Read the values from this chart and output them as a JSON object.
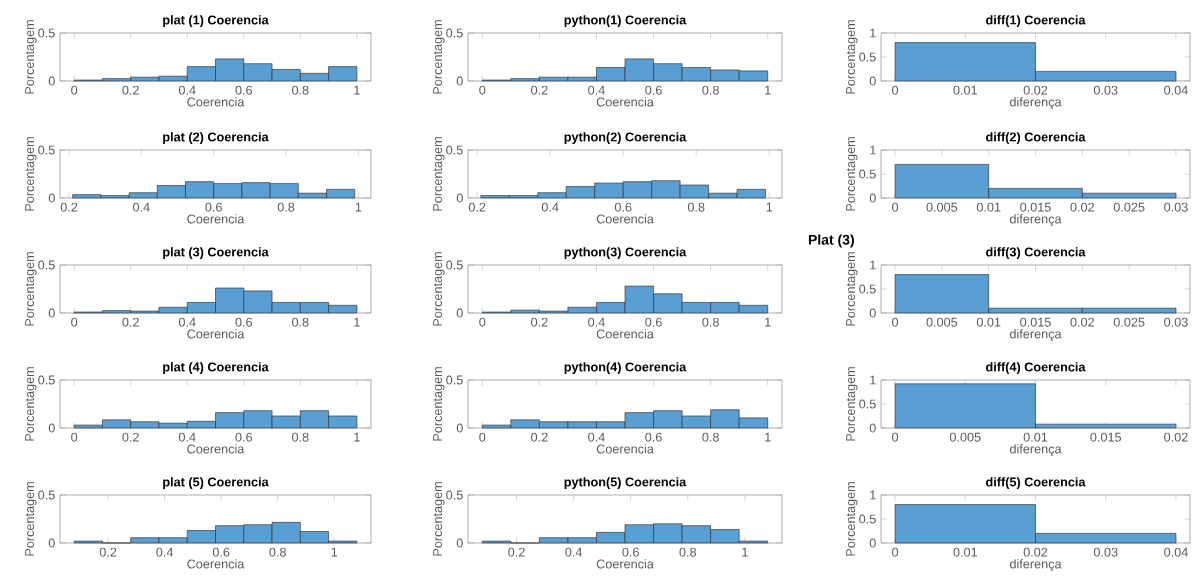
{
  "chart_data": [
    {
      "type": "histogram",
      "title": "plat (1) Coerencia",
      "xlabel": "Coerencia",
      "ylabel": "Porcentagem",
      "color": "#5a9fd4",
      "bins": [
        0,
        0.1,
        0.2,
        0.3,
        0.4,
        0.5,
        0.6,
        0.7,
        0.8,
        0.9,
        1
      ],
      "values": [
        0.01,
        0.025,
        0.04,
        0.05,
        0.15,
        0.23,
        0.18,
        0.12,
        0.08,
        0.15
      ],
      "xlim": [
        -0.05,
        1.05
      ],
      "ylim": [
        0,
        0.5
      ],
      "xticks": [
        0,
        0.2,
        0.4,
        0.6,
        0.8,
        1
      ],
      "yticks": [
        0,
        0.5
      ]
    },
    {
      "type": "histogram",
      "title": "python(1) Coerencia",
      "xlabel": "Coerencia",
      "ylabel": "Porcentagem",
      "color": "#5a9fd4",
      "bins": [
        0,
        0.1,
        0.2,
        0.3,
        0.4,
        0.5,
        0.6,
        0.7,
        0.8,
        0.9,
        1
      ],
      "values": [
        0.01,
        0.025,
        0.04,
        0.04,
        0.14,
        0.23,
        0.18,
        0.14,
        0.115,
        0.105
      ],
      "xlim": [
        -0.05,
        1.05
      ],
      "ylim": [
        0,
        0.5
      ],
      "xticks": [
        0,
        0.2,
        0.4,
        0.6,
        0.8,
        1
      ],
      "yticks": [
        0,
        0.5
      ]
    },
    {
      "type": "histogram",
      "title": "diff(1) Coerencia",
      "xlabel": "diferença",
      "ylabel": "Porcentagem",
      "color": "#5a9fd4",
      "bins": [
        0,
        0.02,
        0.04
      ],
      "values": [
        0.8,
        0.2
      ],
      "xlim": [
        -0.002,
        0.042
      ],
      "ylim": [
        0,
        1
      ],
      "xticks": [
        0,
        0.01,
        0.02,
        0.03,
        0.04
      ],
      "yticks": [
        0,
        0.5,
        1
      ]
    },
    {
      "type": "histogram",
      "title": "plat (2) Coerencia",
      "xlabel": "Coerencia",
      "ylabel": "Porcentagem",
      "color": "#5a9fd4",
      "bins": [
        0.21,
        0.288,
        0.366,
        0.444,
        0.522,
        0.6,
        0.678,
        0.756,
        0.834,
        0.912,
        0.99
      ],
      "values": [
        0.035,
        0.025,
        0.055,
        0.13,
        0.17,
        0.15,
        0.16,
        0.15,
        0.05,
        0.09
      ],
      "xlim": [
        0.175,
        1.035
      ],
      "ylim": [
        0,
        0.5
      ],
      "xticks": [
        0.2,
        0.4,
        0.6,
        0.8,
        1
      ],
      "yticks": [
        0,
        0.5
      ]
    },
    {
      "type": "histogram",
      "title": "python(2) Coerencia",
      "xlabel": "Coerencia",
      "ylabel": "Porcentagem",
      "color": "#5a9fd4",
      "bins": [
        0.21,
        0.288,
        0.366,
        0.444,
        0.522,
        0.6,
        0.678,
        0.756,
        0.834,
        0.912,
        0.99
      ],
      "values": [
        0.025,
        0.025,
        0.055,
        0.12,
        0.155,
        0.17,
        0.18,
        0.135,
        0.05,
        0.09
      ],
      "xlim": [
        0.175,
        1.035
      ],
      "ylim": [
        0,
        0.5
      ],
      "xticks": [
        0.2,
        0.4,
        0.6,
        0.8,
        1
      ],
      "yticks": [
        0,
        0.5
      ]
    },
    {
      "type": "histogram",
      "title": "diff(2) Coerencia",
      "xlabel": "diferença",
      "ylabel": "Porcentagem",
      "color": "#5a9fd4",
      "bins": [
        0,
        0.01,
        0.02,
        0.03
      ],
      "values": [
        0.7,
        0.2,
        0.1
      ],
      "xlim": [
        -0.0015,
        0.0315
      ],
      "ylim": [
        0,
        1
      ],
      "xticks": [
        0,
        0.005,
        0.01,
        0.015,
        0.02,
        0.025,
        0.03
      ],
      "yticks": [
        0,
        0.5,
        1
      ]
    },
    {
      "type": "histogram",
      "title": "plat (3) Coerencia",
      "xlabel": "Coerencia",
      "ylabel": "Porcentagem",
      "color": "#5a9fd4",
      "bins": [
        0,
        0.1,
        0.2,
        0.3,
        0.4,
        0.5,
        0.6,
        0.7,
        0.8,
        0.9,
        1
      ],
      "values": [
        0.01,
        0.025,
        0.02,
        0.06,
        0.11,
        0.26,
        0.23,
        0.11,
        0.11,
        0.08
      ],
      "xlim": [
        -0.05,
        1.05
      ],
      "ylim": [
        0,
        0.5
      ],
      "xticks": [
        0,
        0.2,
        0.4,
        0.6,
        0.8,
        1
      ],
      "yticks": [
        0,
        0.5
      ]
    },
    {
      "type": "histogram",
      "title": "python(3) Coerencia",
      "xlabel": "Coerencia",
      "ylabel": "Porcentagem",
      "color": "#5a9fd4",
      "bins": [
        0,
        0.1,
        0.2,
        0.3,
        0.4,
        0.5,
        0.6,
        0.7,
        0.8,
        0.9,
        1
      ],
      "values": [
        0.01,
        0.03,
        0.02,
        0.06,
        0.11,
        0.28,
        0.2,
        0.11,
        0.11,
        0.08
      ],
      "xlim": [
        -0.05,
        1.05
      ],
      "ylim": [
        0,
        0.5
      ],
      "xticks": [
        0,
        0.2,
        0.4,
        0.6,
        0.8,
        1
      ],
      "yticks": [
        0,
        0.5
      ]
    },
    {
      "type": "histogram",
      "title": "diff(3) Coerencia",
      "xlabel": "diferença",
      "ylabel": "Porcentagem",
      "color": "#5a9fd4",
      "bins": [
        0,
        0.01,
        0.02,
        0.03
      ],
      "values": [
        0.8,
        0.1,
        0.1
      ],
      "xlim": [
        -0.0015,
        0.0315
      ],
      "ylim": [
        0,
        1
      ],
      "xticks": [
        0,
        0.005,
        0.01,
        0.015,
        0.02,
        0.025,
        0.03
      ],
      "yticks": [
        0,
        0.5,
        1
      ],
      "annotations": [
        "Plat (3)"
      ]
    },
    {
      "type": "histogram",
      "title": "plat (4) Coerencia",
      "xlabel": "Coerencia",
      "ylabel": "Porcentagem",
      "color": "#5a9fd4",
      "bins": [
        0,
        0.1,
        0.2,
        0.3,
        0.4,
        0.5,
        0.6,
        0.7,
        0.8,
        0.9,
        1
      ],
      "values": [
        0.03,
        0.085,
        0.065,
        0.05,
        0.07,
        0.16,
        0.18,
        0.125,
        0.18,
        0.125
      ],
      "xlim": [
        -0.05,
        1.05
      ],
      "ylim": [
        0,
        0.5
      ],
      "xticks": [
        0,
        0.2,
        0.4,
        0.6,
        0.8,
        1
      ],
      "yticks": [
        0,
        0.5
      ]
    },
    {
      "type": "histogram",
      "title": "python(4) Coerencia",
      "xlabel": "Coerencia",
      "ylabel": "Porcentagem",
      "color": "#5a9fd4",
      "bins": [
        0,
        0.1,
        0.2,
        0.3,
        0.4,
        0.5,
        0.6,
        0.7,
        0.8,
        0.9,
        1
      ],
      "values": [
        0.03,
        0.085,
        0.065,
        0.065,
        0.065,
        0.16,
        0.18,
        0.125,
        0.19,
        0.105
      ],
      "xlim": [
        -0.05,
        1.05
      ],
      "ylim": [
        0,
        0.5
      ],
      "xticks": [
        0,
        0.2,
        0.4,
        0.6,
        0.8,
        1
      ],
      "yticks": [
        0,
        0.5
      ]
    },
    {
      "type": "histogram",
      "title": "diff(4) Coerencia",
      "xlabel": "diferença",
      "ylabel": "Porcentagem",
      "color": "#5a9fd4",
      "bins": [
        0,
        0.01,
        0.02
      ],
      "values": [
        0.92,
        0.08
      ],
      "xlim": [
        -0.001,
        0.021
      ],
      "ylim": [
        0,
        1
      ],
      "xticks": [
        0,
        0.005,
        0.01,
        0.015,
        0.02
      ],
      "yticks": [
        0,
        0.5,
        1
      ]
    },
    {
      "type": "histogram",
      "title": "plat (5) Coerencia",
      "xlabel": "Coerencia",
      "ylabel": "Porcentagem",
      "color": "#5a9fd4",
      "bins": [
        0.08,
        0.18,
        0.28,
        0.38,
        0.48,
        0.58,
        0.68,
        0.78,
        0.88,
        0.98,
        1.08
      ],
      "values": [
        0.02,
        0,
        0.055,
        0.055,
        0.13,
        0.18,
        0.19,
        0.215,
        0.12,
        0.02
      ],
      "xlim": [
        0.03,
        1.13
      ],
      "ylim": [
        0,
        0.5
      ],
      "xticks": [
        0.2,
        0.4,
        0.6,
        0.8,
        1
      ],
      "yticks": [
        0,
        0.5
      ]
    },
    {
      "type": "histogram",
      "title": "python(5) Coerencia",
      "xlabel": "Coerencia",
      "ylabel": "Porcentagem",
      "color": "#5a9fd4",
      "bins": [
        0.08,
        0.18,
        0.28,
        0.38,
        0.48,
        0.58,
        0.68,
        0.78,
        0.88,
        0.98,
        1.08
      ],
      "values": [
        0.02,
        0,
        0.055,
        0.055,
        0.11,
        0.19,
        0.2,
        0.18,
        0.14,
        0.02
      ],
      "xlim": [
        0.03,
        1.13
      ],
      "ylim": [
        0,
        0.5
      ],
      "xticks": [
        0.2,
        0.4,
        0.6,
        0.8,
        1
      ],
      "yticks": [
        0,
        0.5
      ]
    },
    {
      "type": "histogram",
      "title": "diff(5) Coerencia",
      "xlabel": "diferença",
      "ylabel": "Porcentagem",
      "color": "#5a9fd4",
      "bins": [
        0,
        0.02,
        0.04
      ],
      "values": [
        0.8,
        0.2
      ],
      "xlim": [
        -0.002,
        0.042
      ],
      "ylim": [
        0,
        1
      ],
      "xticks": [
        0,
        0.01,
        0.02,
        0.03,
        0.04
      ],
      "yticks": [
        0,
        0.5,
        1
      ]
    }
  ]
}
